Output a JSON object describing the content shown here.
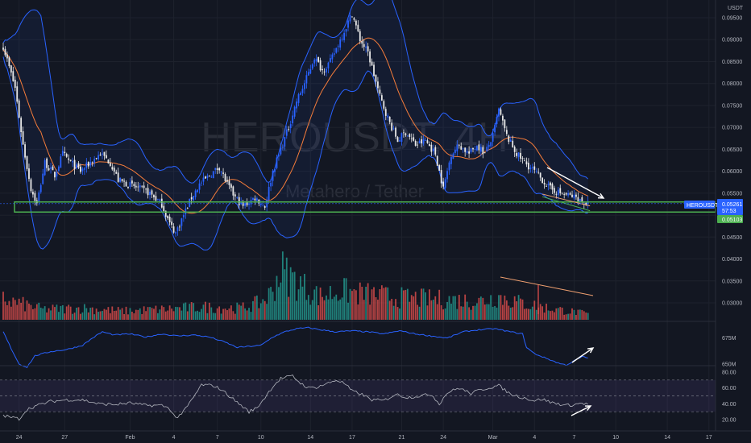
{
  "watermark": {
    "symbol": "HEROUSDT, 4H",
    "name": "Metahero / Tether"
  },
  "price_axis": {
    "currency": "USDT",
    "ticks": [
      "0.09500",
      "0.09000",
      "0.08500",
      "0.08000",
      "0.07500",
      "0.07000",
      "0.06500",
      "0.06000",
      "0.05500",
      "0.05000",
      "0.04500",
      "0.04000",
      "0.03500",
      "0.03000"
    ],
    "tick_values": [
      0.095,
      0.09,
      0.085,
      0.08,
      0.075,
      0.07,
      0.065,
      0.06,
      0.055,
      0.05,
      0.045,
      0.04,
      0.035,
      0.03
    ],
    "last_price_tag": {
      "symbol": "HEROUSDT",
      "price": "0.05261",
      "countdown": "57:53",
      "price_value": 0.05261
    },
    "support_tag": {
      "price": "0.05103",
      "price_value": 0.05103
    }
  },
  "obv_axis": {
    "ticks": [
      "675M",
      "650M"
    ],
    "tick_values": [
      675,
      650
    ]
  },
  "rsi_axis": {
    "ticks": [
      "80.00",
      "60.00",
      "40.00",
      "20.00"
    ],
    "tick_values": [
      80,
      60,
      40,
      20
    ]
  },
  "time_axis": {
    "ticks": [
      "24",
      "27",
      "Feb",
      "4",
      "7",
      "10",
      "14",
      "17",
      "21",
      "24",
      "Mar",
      "4",
      "7",
      "10",
      "14",
      "17"
    ],
    "bar_index": [
      8,
      31,
      64,
      86,
      108,
      130,
      155,
      176,
      201,
      222,
      247,
      268,
      288,
      309,
      335,
      356
    ]
  },
  "colors": {
    "background": "#131722",
    "up": "#2962ff",
    "down": "#e8e8e8",
    "bollinger": "#2962ff",
    "basis": "#f57c3a",
    "support": "#4caf50",
    "vol_up": "#26a69a",
    "vol_down": "#ef5350",
    "rsi_line": "#b2b5be",
    "rsi_band": "#7e57c2",
    "last_tag": "#2962ff",
    "support_tag": "#4caf50",
    "annotation": "#ffffff",
    "trend_orange": "#f0a070"
  },
  "chart_data": [
    {
      "type": "candlestick",
      "panel": "price",
      "series_name": "HEROUSDT, 4H",
      "ylim": [
        0.0425,
        0.0975
      ],
      "anchors": [
        [
          0,
          0.0885
        ],
        [
          6,
          0.079
        ],
        [
          10,
          0.066
        ],
        [
          14,
          0.056
        ],
        [
          17,
          0.0525
        ],
        [
          21,
          0.062
        ],
        [
          26,
          0.059
        ],
        [
          30,
          0.064
        ],
        [
          34,
          0.062
        ],
        [
          39,
          0.06
        ],
        [
          44,
          0.062
        ],
        [
          49,
          0.064
        ],
        [
          54,
          0.062
        ],
        [
          58,
          0.058
        ],
        [
          63,
          0.057
        ],
        [
          69,
          0.056
        ],
        [
          74,
          0.055
        ],
        [
          80,
          0.0525
        ],
        [
          84,
          0.048
        ],
        [
          87,
          0.046
        ],
        [
          91,
          0.05
        ],
        [
          95,
          0.054
        ],
        [
          99,
          0.057
        ],
        [
          104,
          0.059
        ],
        [
          109,
          0.061
        ],
        [
          113,
          0.057
        ],
        [
          117,
          0.054
        ],
        [
          121,
          0.052
        ],
        [
          127,
          0.054
        ],
        [
          132,
          0.052
        ],
        [
          136,
          0.06
        ],
        [
          140,
          0.065
        ],
        [
          144,
          0.07
        ],
        [
          148,
          0.076
        ],
        [
          152,
          0.08
        ],
        [
          157,
          0.086
        ],
        [
          161,
          0.083
        ],
        [
          165,
          0.085
        ],
        [
          169,
          0.089
        ],
        [
          172,
          0.092
        ],
        [
          176,
          0.096
        ],
        [
          180,
          0.09
        ],
        [
          184,
          0.087
        ],
        [
          187,
          0.082
        ],
        [
          190,
          0.077
        ],
        [
          195,
          0.071
        ],
        [
          199,
          0.067
        ],
        [
          203,
          0.069
        ],
        [
          208,
          0.066
        ],
        [
          213,
          0.067
        ],
        [
          218,
          0.064
        ],
        [
          222,
          0.056
        ],
        [
          226,
          0.064
        ],
        [
          230,
          0.066
        ],
        [
          235,
          0.064
        ],
        [
          239,
          0.066
        ],
        [
          243,
          0.064
        ],
        [
          247,
          0.068
        ],
        [
          250,
          0.074
        ],
        [
          254,
          0.068
        ],
        [
          259,
          0.064
        ],
        [
          263,
          0.062
        ],
        [
          268,
          0.06
        ],
        [
          272,
          0.058
        ],
        [
          276,
          0.056
        ],
        [
          281,
          0.055
        ],
        [
          285,
          0.0545
        ],
        [
          289,
          0.054
        ],
        [
          292,
          0.053
        ],
        [
          295,
          0.0526
        ]
      ],
      "n_bars": 296,
      "bollinger": {
        "length": 20,
        "mult": 2
      }
    },
    {
      "type": "bar",
      "panel": "volume",
      "series_name": "Volume",
      "anchors": [
        [
          0,
          0.35
        ],
        [
          20,
          0.18
        ],
        [
          40,
          0.2
        ],
        [
          60,
          0.15
        ],
        [
          80,
          0.18
        ],
        [
          100,
          0.22
        ],
        [
          120,
          0.2
        ],
        [
          130,
          0.3
        ],
        [
          135,
          0.45
        ],
        [
          140,
          0.85
        ],
        [
          150,
          0.6
        ],
        [
          160,
          0.4
        ],
        [
          170,
          0.5
        ],
        [
          180,
          0.45
        ],
        [
          200,
          0.38
        ],
        [
          220,
          0.35
        ],
        [
          240,
          0.32
        ],
        [
          250,
          0.4
        ],
        [
          260,
          0.3
        ],
        [
          275,
          0.2
        ],
        [
          295,
          0.1
        ]
      ],
      "ylim": [
        0,
        1
      ]
    },
    {
      "type": "line",
      "panel": "obv",
      "series_name": "OBV",
      "ylim": [
        640,
        690
      ],
      "anchors": [
        [
          0,
          681
        ],
        [
          4,
          665
        ],
        [
          8,
          650
        ],
        [
          12,
          647
        ],
        [
          16,
          658
        ],
        [
          24,
          662
        ],
        [
          32,
          664
        ],
        [
          40,
          668
        ],
        [
          45,
          675
        ],
        [
          50,
          681
        ],
        [
          56,
          678
        ],
        [
          64,
          679
        ],
        [
          72,
          676
        ],
        [
          80,
          679
        ],
        [
          88,
          677
        ],
        [
          96,
          678
        ],
        [
          104,
          676
        ],
        [
          112,
          671
        ],
        [
          118,
          666
        ],
        [
          124,
          667
        ],
        [
          130,
          668
        ],
        [
          136,
          676
        ],
        [
          142,
          681
        ],
        [
          148,
          684
        ],
        [
          154,
          685
        ],
        [
          160,
          683
        ],
        [
          168,
          681
        ],
        [
          176,
          682
        ],
        [
          184,
          681
        ],
        [
          192,
          679
        ],
        [
          200,
          682
        ],
        [
          208,
          679
        ],
        [
          216,
          677
        ],
        [
          224,
          675
        ],
        [
          232,
          681
        ],
        [
          240,
          683
        ],
        [
          248,
          684
        ],
        [
          256,
          681
        ],
        [
          262,
          679
        ],
        [
          264,
          666
        ],
        [
          268,
          660
        ],
        [
          272,
          657
        ],
        [
          276,
          654
        ],
        [
          280,
          651
        ],
        [
          284,
          649
        ],
        [
          288,
          653
        ],
        [
          292,
          657
        ],
        [
          295,
          656
        ]
      ]
    },
    {
      "type": "line",
      "panel": "rsi",
      "series_name": "RSI 14",
      "ylim": [
        15,
        85
      ],
      "bands": [
        30,
        50,
        70
      ],
      "anchors": [
        [
          0,
          25
        ],
        [
          8,
          21
        ],
        [
          12,
          33
        ],
        [
          16,
          37
        ],
        [
          24,
          43
        ],
        [
          32,
          45
        ],
        [
          40,
          45
        ],
        [
          48,
          40
        ],
        [
          56,
          39
        ],
        [
          64,
          41
        ],
        [
          72,
          38
        ],
        [
          80,
          38
        ],
        [
          84,
          34
        ],
        [
          87,
          22
        ],
        [
          91,
          30
        ],
        [
          96,
          48
        ],
        [
          100,
          64
        ],
        [
          106,
          63
        ],
        [
          110,
          58
        ],
        [
          114,
          50
        ],
        [
          118,
          42
        ],
        [
          124,
          30
        ],
        [
          128,
          35
        ],
        [
          132,
          48
        ],
        [
          136,
          62
        ],
        [
          140,
          72
        ],
        [
          146,
          75
        ],
        [
          150,
          66
        ],
        [
          154,
          60
        ],
        [
          158,
          61
        ],
        [
          164,
          66
        ],
        [
          168,
          70
        ],
        [
          172,
          66
        ],
        [
          176,
          56
        ],
        [
          180,
          53
        ],
        [
          186,
          45
        ],
        [
          192,
          44
        ],
        [
          198,
          52
        ],
        [
          204,
          48
        ],
        [
          210,
          50
        ],
        [
          216,
          52
        ],
        [
          220,
          40
        ],
        [
          224,
          54
        ],
        [
          230,
          60
        ],
        [
          236,
          53
        ],
        [
          240,
          57
        ],
        [
          246,
          61
        ],
        [
          250,
          63
        ],
        [
          256,
          52
        ],
        [
          262,
          48
        ],
        [
          268,
          44
        ],
        [
          272,
          46
        ],
        [
          276,
          42
        ],
        [
          280,
          40
        ],
        [
          284,
          38
        ],
        [
          288,
          39
        ],
        [
          292,
          41
        ],
        [
          295,
          39
        ]
      ]
    }
  ]
}
